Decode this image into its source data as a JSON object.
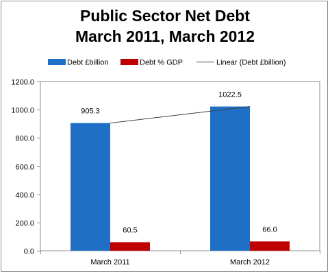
{
  "chart_data": {
    "type": "bar",
    "title": "Public Sector Net Debt",
    "subtitle": "March 2011, March 2012",
    "categories": [
      "March 2011",
      "March 2012"
    ],
    "series": [
      {
        "name": "Debt £billion",
        "values": [
          905.3,
          1022.5
        ],
        "labels": [
          "905.3",
          "1022.5"
        ],
        "color": "#1f6fc6"
      },
      {
        "name": "Debt % GDP",
        "values": [
          60.5,
          66.0
        ],
        "labels": [
          "60.5",
          "66.0"
        ],
        "color": "#c00000"
      }
    ],
    "trendline": {
      "name": "Linear (Debt £billion)",
      "series_index": 0,
      "type": "linear",
      "color": "#404040"
    },
    "ylim": [
      0,
      1200
    ],
    "yticks": [
      0,
      200,
      400,
      600,
      800,
      1000,
      1200
    ],
    "ytick_labels": [
      "0.0",
      "200.0",
      "400.0",
      "600.0",
      "800.0",
      "1000.0",
      "1200.0"
    ],
    "xlabel": "",
    "ylabel": "",
    "legend_position": "top",
    "grid": false
  }
}
